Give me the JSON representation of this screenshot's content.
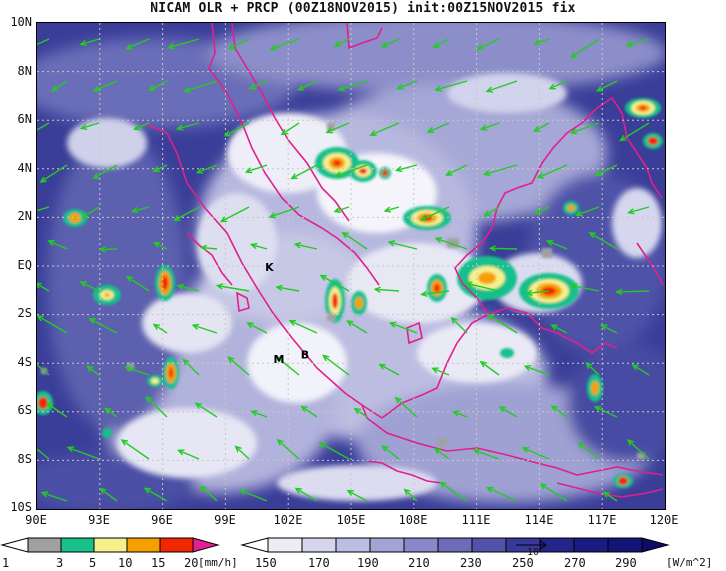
{
  "title": "NICAM OLR + PRCP (00Z18NOV2015) init:00Z15NOV2015 fix",
  "lat_ticks": [
    "10N",
    "8N",
    "6N",
    "4N",
    "2N",
    "EQ",
    "2S",
    "4S",
    "6S",
    "8S",
    "10S"
  ],
  "lon_ticks": [
    "90E",
    "93E",
    "96E",
    "99E",
    "102E",
    "105E",
    "108E",
    "111E",
    "114E",
    "117E",
    "120E"
  ],
  "map_extent": {
    "lon_min": 90,
    "lon_max": 120,
    "lat_min": -10,
    "lat_max": 10
  },
  "station_labels": [
    {
      "text": "K",
      "lon": 100.9,
      "lat": -0.2
    },
    {
      "text": "M",
      "lon": 101.3,
      "lat": -4.0
    },
    {
      "text": "B",
      "lon": 102.6,
      "lat": -3.8
    }
  ],
  "precip_colorbar": {
    "labels": [
      "1",
      "3",
      "5",
      "10",
      "15",
      "20"
    ],
    "unit": "[mm/h]",
    "colors": [
      "#ffffff",
      "#a0a0a0",
      "#19c08c",
      "#f5f08c",
      "#f5a000",
      "#f02800",
      "#e61e96"
    ]
  },
  "olr_colorbar": {
    "labels": [
      "150",
      "170",
      "190",
      "210",
      "230",
      "250",
      "270",
      "290"
    ],
    "unit": "[W/m^2]",
    "colors": [
      "#ffffff",
      "#ecebf6",
      "#d6d5ee",
      "#bdbde3",
      "#a3a3d6",
      "#8888c8",
      "#6c6cb9",
      "#5252aa",
      "#39399a",
      "#24248a",
      "#141476"
    ]
  },
  "vector_reference": "10",
  "colors": {
    "coastline": "#e0208c",
    "wind_vector": "#22cc22",
    "frame": "#000000"
  }
}
